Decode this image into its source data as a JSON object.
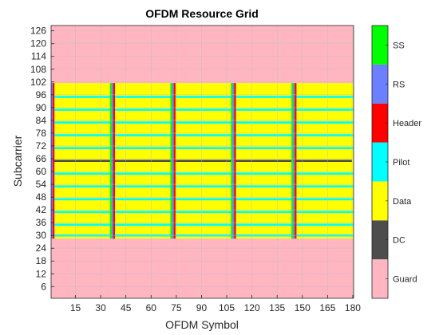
{
  "chart_data": {
    "type": "heatmap",
    "title": "OFDM Resource Grid",
    "xlabel": "OFDM Symbol",
    "ylabel": "Subcarrier",
    "xlim": [
      0.5,
      180.5
    ],
    "ylim": [
      0.5,
      128.5
    ],
    "xticks": [
      15,
      30,
      45,
      60,
      75,
      90,
      105,
      120,
      135,
      150,
      165,
      180
    ],
    "yticks": [
      6,
      12,
      18,
      24,
      30,
      36,
      42,
      48,
      54,
      60,
      66,
      72,
      78,
      84,
      90,
      96,
      102,
      108,
      114,
      120,
      126
    ],
    "grid": true,
    "legend_position": "right colorbar",
    "categories": [
      {
        "label": "Guard",
        "color": "#FFB6C1"
      },
      {
        "label": "DC",
        "color": "#4D4D4D"
      },
      {
        "label": "Data",
        "color": "#FFFF00"
      },
      {
        "label": "Pilot",
        "color": "#00FFFF"
      },
      {
        "label": "Header",
        "color": "#FF0000"
      },
      {
        "label": "RS",
        "color": "#6B7FFF"
      },
      {
        "label": "SS",
        "color": "#00FF00"
      }
    ],
    "occupied_subcarriers": [
      29,
      101
    ],
    "dc_subcarrier": 65,
    "pilot_subcarriers": [
      30,
      35,
      41,
      47,
      53,
      59,
      71,
      77,
      83,
      89,
      95
    ],
    "frame_start_symbols": [
      1,
      37,
      73,
      109,
      145
    ],
    "symbols_per_frame": 36,
    "frame_symbol_roles": {
      "1": "RS",
      "2": "Header",
      "36": "SS"
    },
    "default_cell": "Guard"
  }
}
